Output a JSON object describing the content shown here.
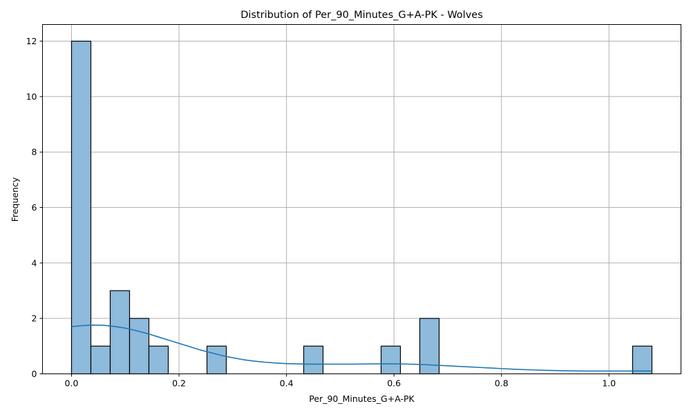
{
  "chart_data": {
    "type": "bar",
    "title": "Distribution of Per_90_Minutes_G+A-PK - Wolves",
    "xlabel": "Per_90_Minutes_G+A-PK",
    "ylabel": "Frequency",
    "xlim": [
      -0.054,
      1.134
    ],
    "ylim": [
      0,
      12.6
    ],
    "x_ticks": [
      0.0,
      0.2,
      0.4,
      0.6,
      0.8,
      1.0
    ],
    "x_tick_labels": [
      "0.0",
      "0.2",
      "0.4",
      "0.6",
      "0.8",
      "1.0"
    ],
    "y_ticks": [
      0,
      2,
      4,
      6,
      8,
      10,
      12
    ],
    "y_tick_labels": [
      "0",
      "2",
      "4",
      "6",
      "8",
      "10",
      "12"
    ],
    "grid": true,
    "bins": [
      {
        "start": 0.0,
        "end": 0.036,
        "count": 12
      },
      {
        "start": 0.036,
        "end": 0.072,
        "count": 1
      },
      {
        "start": 0.072,
        "end": 0.108,
        "count": 3
      },
      {
        "start": 0.108,
        "end": 0.144,
        "count": 2
      },
      {
        "start": 0.144,
        "end": 0.18,
        "count": 1
      },
      {
        "start": 0.252,
        "end": 0.288,
        "count": 1
      },
      {
        "start": 0.432,
        "end": 0.468,
        "count": 1
      },
      {
        "start": 0.576,
        "end": 0.612,
        "count": 1
      },
      {
        "start": 0.648,
        "end": 0.684,
        "count": 2
      },
      {
        "start": 1.044,
        "end": 1.08,
        "count": 1
      }
    ],
    "kde": {
      "x": [
        0.0,
        0.02,
        0.04,
        0.06,
        0.08,
        0.1,
        0.12,
        0.14,
        0.16,
        0.18,
        0.2,
        0.22,
        0.24,
        0.26,
        0.28,
        0.3,
        0.32,
        0.34,
        0.36,
        0.38,
        0.4,
        0.42,
        0.44,
        0.46,
        0.48,
        0.5,
        0.52,
        0.54,
        0.56,
        0.58,
        0.6,
        0.62,
        0.64,
        0.66,
        0.68,
        0.7,
        0.72,
        0.74,
        0.76,
        0.78,
        0.8,
        0.82,
        0.84,
        0.86,
        0.88,
        0.9,
        0.92,
        0.94,
        0.96,
        0.98,
        1.0,
        1.02,
        1.04,
        1.06,
        1.08
      ],
      "y": [
        1.7,
        1.74,
        1.76,
        1.75,
        1.71,
        1.65,
        1.56,
        1.46,
        1.34,
        1.22,
        1.1,
        0.98,
        0.86,
        0.76,
        0.66,
        0.58,
        0.51,
        0.46,
        0.42,
        0.39,
        0.37,
        0.36,
        0.35,
        0.35,
        0.35,
        0.35,
        0.35,
        0.355,
        0.36,
        0.36,
        0.36,
        0.355,
        0.345,
        0.33,
        0.31,
        0.29,
        0.27,
        0.25,
        0.23,
        0.21,
        0.19,
        0.17,
        0.155,
        0.14,
        0.13,
        0.12,
        0.11,
        0.105,
        0.1,
        0.1,
        0.1,
        0.1,
        0.1,
        0.1,
        0.1
      ]
    },
    "colors": {
      "bar_fill": "#8ebadb",
      "bar_edge": "#000000",
      "kde_line": "#1f77b4",
      "grid": "#b0b0b0"
    }
  }
}
